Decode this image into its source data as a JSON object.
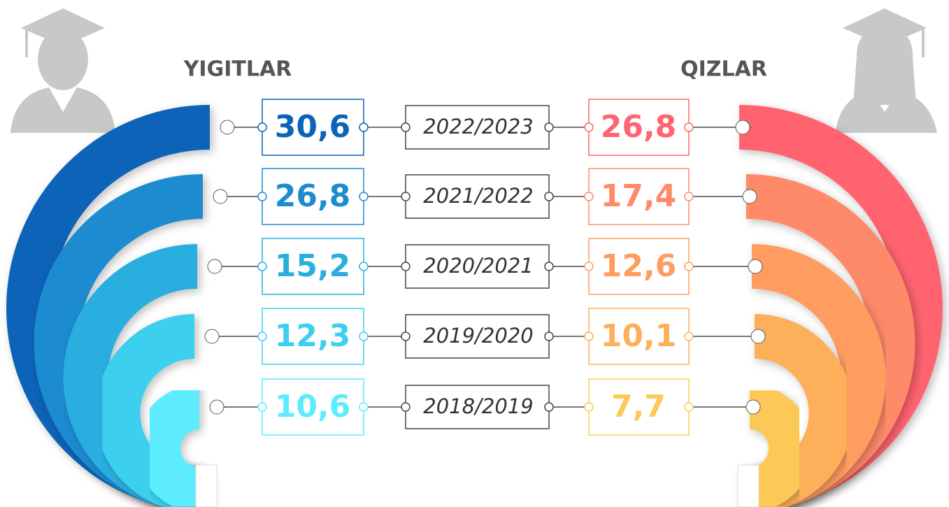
{
  "left_title": "YIGITLAR",
  "right_title": "QIZLAR",
  "rows": [
    {
      "year": "2022/2023",
      "boys": "30,6",
      "girls": "26,8"
    },
    {
      "year": "2021/2022",
      "boys": "26,8",
      "girls": "17,4"
    },
    {
      "year": "2020/2021",
      "boys": "15,2",
      "girls": "12,6"
    },
    {
      "year": "2019/2020",
      "boys": "12,3",
      "girls": "10,1"
    },
    {
      "year": "2018/2019",
      "boys": "10,6",
      "girls": "7,7"
    }
  ]
}
